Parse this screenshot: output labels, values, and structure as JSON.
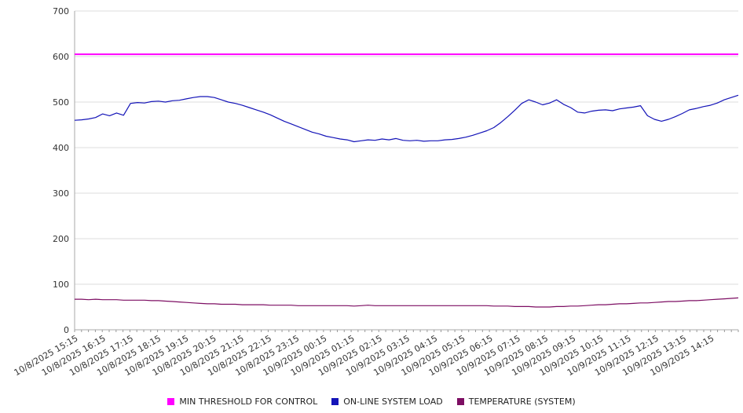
{
  "chart_data": {
    "type": "line",
    "title": "",
    "xlabel": "",
    "ylabel": "",
    "ylim": [
      0,
      700
    ],
    "y_ticks": [
      0,
      100,
      200,
      300,
      400,
      500,
      600,
      700
    ],
    "grid": "horizontal",
    "legend_position": "bottom",
    "x_labels": [
      "10/8/2025 15:15",
      "10/8/2025 16:15",
      "10/8/2025 17:15",
      "10/8/2025 18:15",
      "10/8/2025 19:15",
      "10/8/2025 20:15",
      "10/8/2025 21:15",
      "10/8/2025 22:15",
      "10/8/2025 23:15",
      "10/9/2025 00:15",
      "10/9/2025 01:15",
      "10/9/2025 02:15",
      "10/9/2025 03:15",
      "10/9/2025 04:15",
      "10/9/2025 05:15",
      "10/9/2025 06:15",
      "10/9/2025 07:15",
      "10/9/2025 08:15",
      "10/9/2025 09:15",
      "10/9/2025 10:15",
      "10/9/2025 11:15",
      "10/9/2025 12:15",
      "10/9/2025 13:15",
      "10/9/2025 14:15"
    ],
    "series": [
      {
        "name": "MIN THRESHOLD FOR CONTROL",
        "color": "#ff00ff",
        "values": [
          605,
          605
        ]
      },
      {
        "name": "ON-LINE SYSTEM LOAD",
        "color": "#1414b8",
        "values": [
          460,
          461,
          463,
          466,
          474,
          470,
          476,
          471,
          497,
          499,
          498,
          501,
          502,
          500,
          503,
          504,
          507,
          510,
          512,
          512,
          510,
          505,
          500,
          497,
          493,
          488,
          483,
          478,
          472,
          465,
          458,
          452,
          446,
          440,
          434,
          430,
          425,
          422,
          419,
          417,
          413,
          415,
          417,
          416,
          419,
          417,
          420,
          416,
          415,
          416,
          414,
          415,
          415,
          417,
          418,
          420,
          423,
          427,
          432,
          437,
          444,
          455,
          468,
          482,
          497,
          505,
          500,
          494,
          498,
          505,
          495,
          488,
          478,
          476,
          480,
          482,
          483,
          481,
          485,
          487,
          489,
          492,
          470,
          462,
          458,
          462,
          468,
          475,
          483,
          486,
          490,
          493,
          498,
          505,
          510,
          515
        ]
      },
      {
        "name": "TEMPERATURE (SYSTEM)",
        "color": "#7d0e63",
        "values": [
          67,
          67,
          66,
          67,
          66,
          66,
          66,
          65,
          65,
          65,
          65,
          64,
          64,
          63,
          62,
          61,
          60,
          59,
          58,
          57,
          57,
          56,
          56,
          56,
          55,
          55,
          55,
          55,
          54,
          54,
          54,
          54,
          53,
          53,
          53,
          53,
          53,
          53,
          53,
          53,
          52,
          53,
          54,
          53,
          53,
          53,
          53,
          53,
          53,
          53,
          53,
          53,
          53,
          53,
          53,
          53,
          53,
          53,
          53,
          53,
          52,
          52,
          52,
          51,
          51,
          51,
          50,
          50,
          50,
          51,
          51,
          52,
          52,
          53,
          54,
          55,
          55,
          56,
          57,
          57,
          58,
          59,
          59,
          60,
          61,
          62,
          62,
          63,
          64,
          64,
          65,
          66,
          67,
          68,
          69,
          70
        ]
      }
    ]
  }
}
